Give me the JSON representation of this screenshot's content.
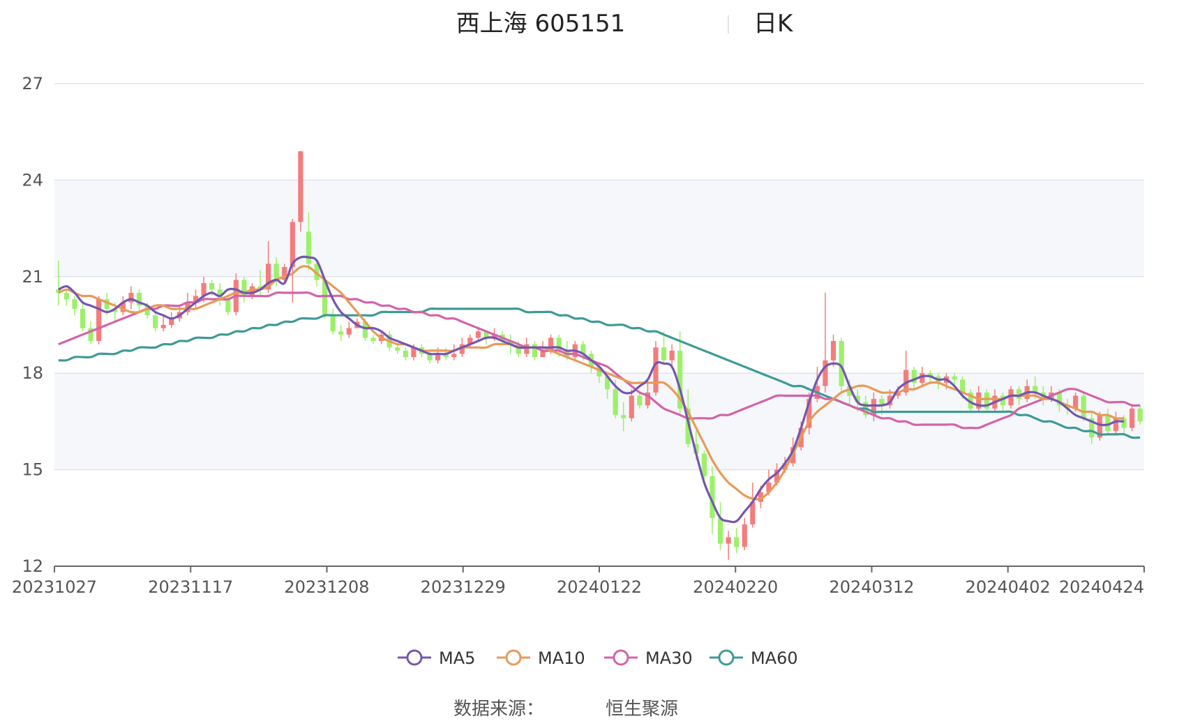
{
  "chart_data": {
    "type": "candlestick",
    "title": "西上海 605151",
    "period_label": "日K",
    "source_label": "数据来源：",
    "source_value": "恒生聚源",
    "y_ticks": [
      "12",
      "15",
      "18",
      "21",
      "24",
      "27"
    ],
    "ylim": [
      12,
      27
    ],
    "x_ticks": [
      "20231027",
      "20231117",
      "20231208",
      "20231229",
      "20240122",
      "20240220",
      "20240312",
      "20240402",
      "20240424"
    ],
    "legend": [
      "MA5",
      "MA10",
      "MA30",
      "MA60"
    ],
    "colors": {
      "up": "#f47c7c",
      "down": "#9cf06a",
      "MA5": "#7456b0",
      "MA10": "#e89a57",
      "MA30": "#d463a8",
      "MA60": "#3e9a97",
      "grid": "#dfe3ec",
      "band": "#f5f7fb",
      "axis": "#666666"
    },
    "candles": [
      [
        20.6,
        20.5,
        21.5,
        20.1
      ],
      [
        20.5,
        20.3,
        20.6,
        20.1
      ],
      [
        20.3,
        20.0,
        20.4,
        19.8
      ],
      [
        20.0,
        19.4,
        20.2,
        19.3
      ],
      [
        19.4,
        19.0,
        19.6,
        18.9
      ],
      [
        19.0,
        20.3,
        20.4,
        18.9
      ],
      [
        20.3,
        20.0,
        20.5,
        19.8
      ],
      [
        20.0,
        19.9,
        20.2,
        19.6
      ],
      [
        19.9,
        20.2,
        20.4,
        19.8
      ],
      [
        20.2,
        20.5,
        20.7,
        20.0
      ],
      [
        20.5,
        20.1,
        20.6,
        19.9
      ],
      [
        20.1,
        19.8,
        20.2,
        19.7
      ],
      [
        19.8,
        19.4,
        19.9,
        19.3
      ],
      [
        19.4,
        19.5,
        19.8,
        19.3
      ],
      [
        19.5,
        19.7,
        19.9,
        19.4
      ],
      [
        19.7,
        19.9,
        20.1,
        19.6
      ],
      [
        19.9,
        20.2,
        20.5,
        19.8
      ],
      [
        20.2,
        20.4,
        20.6,
        20.0
      ],
      [
        20.4,
        20.8,
        21.0,
        20.2
      ],
      [
        20.8,
        20.6,
        20.9,
        20.4
      ],
      [
        20.6,
        20.3,
        20.8,
        20.1
      ],
      [
        20.3,
        19.9,
        20.4,
        19.8
      ],
      [
        19.9,
        20.9,
        21.1,
        19.8
      ],
      [
        20.9,
        20.4,
        21.0,
        20.2
      ],
      [
        20.4,
        20.7,
        20.8,
        20.3
      ],
      [
        20.7,
        20.6,
        21.2,
        20.4
      ],
      [
        20.6,
        21.4,
        22.1,
        20.5
      ],
      [
        21.4,
        20.9,
        21.6,
        20.7
      ],
      [
        20.9,
        21.3,
        21.4,
        20.8
      ],
      [
        21.3,
        22.7,
        22.8,
        20.2
      ],
      [
        22.7,
        24.9,
        24.9,
        22.4
      ],
      [
        22.4,
        21.4,
        23.0,
        21.2
      ],
      [
        21.4,
        20.9,
        21.5,
        20.7
      ],
      [
        20.9,
        19.8,
        21.0,
        19.7
      ],
      [
        19.8,
        19.3,
        20.0,
        19.2
      ],
      [
        19.3,
        19.2,
        19.5,
        19.0
      ],
      [
        19.2,
        19.4,
        19.6,
        19.1
      ],
      [
        19.4,
        19.6,
        19.7,
        19.4
      ],
      [
        19.6,
        19.1,
        19.7,
        19.0
      ],
      [
        19.1,
        19.0,
        19.2,
        18.9
      ],
      [
        19.0,
        19.2,
        19.3,
        18.9
      ],
      [
        19.2,
        18.8,
        19.3,
        18.7
      ],
      [
        18.8,
        18.7,
        18.9,
        18.6
      ],
      [
        18.7,
        18.5,
        18.8,
        18.4
      ],
      [
        18.5,
        18.8,
        18.9,
        18.4
      ],
      [
        18.8,
        18.6,
        18.9,
        18.5
      ],
      [
        18.6,
        18.4,
        18.7,
        18.3
      ],
      [
        18.4,
        18.6,
        18.8,
        18.3
      ],
      [
        18.6,
        18.5,
        18.8,
        18.4
      ],
      [
        18.5,
        18.6,
        18.9,
        18.4
      ],
      [
        18.6,
        18.9,
        19.1,
        18.5
      ],
      [
        18.9,
        19.1,
        19.2,
        18.8
      ],
      [
        19.1,
        19.3,
        19.4,
        19.0
      ],
      [
        19.3,
        19.1,
        19.3,
        18.9
      ],
      [
        19.1,
        19.2,
        19.4,
        19.0
      ],
      [
        19.2,
        19.0,
        19.3,
        18.9
      ],
      [
        19.0,
        18.9,
        19.2,
        18.6
      ],
      [
        18.9,
        18.6,
        19.0,
        18.5
      ],
      [
        18.6,
        18.9,
        19.1,
        18.5
      ],
      [
        18.9,
        18.5,
        19.0,
        18.4
      ],
      [
        18.5,
        18.7,
        19.0,
        18.5
      ],
      [
        18.7,
        19.1,
        19.2,
        18.6
      ],
      [
        19.1,
        18.7,
        19.2,
        18.5
      ],
      [
        18.7,
        18.5,
        19.0,
        18.4
      ],
      [
        18.5,
        18.9,
        19.0,
        18.4
      ],
      [
        18.9,
        18.6,
        19.0,
        18.4
      ],
      [
        18.6,
        18.2,
        18.7,
        18.0
      ],
      [
        18.2,
        17.9,
        18.3,
        17.7
      ],
      [
        17.9,
        17.5,
        18.0,
        17.2
      ],
      [
        17.5,
        16.7,
        17.8,
        16.6
      ],
      [
        16.7,
        16.6,
        17.1,
        16.2
      ],
      [
        16.6,
        17.3,
        17.5,
        16.5
      ],
      [
        17.3,
        17.0,
        17.4,
        16.9
      ],
      [
        17.0,
        17.4,
        17.8,
        16.9
      ],
      [
        17.4,
        18.8,
        19.0,
        17.3
      ],
      [
        18.8,
        18.4,
        19.3,
        18.3
      ],
      [
        18.4,
        18.7,
        18.9,
        18.2
      ],
      [
        18.7,
        16.9,
        19.3,
        16.7
      ],
      [
        16.9,
        15.8,
        17.5,
        15.7
      ],
      [
        15.8,
        15.5,
        16.2,
        15.3
      ],
      [
        15.5,
        14.8,
        15.6,
        14.7
      ],
      [
        14.8,
        13.5,
        15.1,
        13.0
      ],
      [
        13.5,
        12.7,
        14.0,
        12.5
      ],
      [
        12.7,
        12.9,
        13.1,
        12.2
      ],
      [
        12.9,
        12.6,
        13.2,
        12.4
      ],
      [
        12.6,
        13.3,
        13.5,
        12.5
      ],
      [
        13.3,
        14.0,
        14.6,
        13.2
      ],
      [
        14.0,
        14.3,
        14.5,
        13.8
      ],
      [
        14.3,
        14.6,
        15.0,
        14.2
      ],
      [
        14.6,
        15.0,
        15.2,
        14.5
      ],
      [
        15.0,
        15.2,
        15.4,
        14.9
      ],
      [
        15.2,
        15.7,
        16.0,
        15.1
      ],
      [
        15.7,
        16.3,
        16.5,
        15.6
      ],
      [
        16.3,
        17.2,
        17.4,
        16.1
      ],
      [
        17.2,
        17.6,
        18.2,
        17.1
      ],
      [
        17.6,
        18.4,
        20.5,
        17.4
      ],
      [
        18.4,
        19.0,
        19.2,
        18.2
      ],
      [
        19.0,
        17.6,
        19.1,
        17.4
      ],
      [
        17.6,
        17.3,
        17.8,
        17.0
      ],
      [
        17.3,
        17.1,
        17.5,
        16.8
      ],
      [
        17.1,
        16.7,
        17.3,
        16.6
      ],
      [
        16.7,
        17.2,
        17.4,
        16.5
      ],
      [
        17.2,
        17.0,
        17.3,
        16.7
      ],
      [
        17.0,
        17.3,
        17.5,
        16.9
      ],
      [
        17.3,
        17.4,
        17.6,
        17.2
      ],
      [
        17.4,
        18.1,
        18.7,
        17.3
      ],
      [
        18.1,
        17.7,
        18.2,
        17.5
      ],
      [
        17.7,
        18.0,
        18.2,
        17.6
      ],
      [
        18.0,
        17.9,
        18.1,
        17.7
      ],
      [
        17.9,
        17.7,
        18.0,
        17.5
      ],
      [
        17.7,
        17.9,
        18.0,
        17.5
      ],
      [
        17.9,
        17.8,
        18.0,
        17.6
      ],
      [
        17.8,
        17.4,
        17.9,
        17.2
      ],
      [
        17.4,
        16.9,
        17.5,
        16.8
      ],
      [
        16.9,
        17.4,
        17.6,
        16.8
      ],
      [
        17.4,
        16.9,
        17.5,
        16.8
      ],
      [
        16.9,
        17.3,
        17.5,
        16.8
      ],
      [
        17.3,
        17.0,
        17.4,
        16.8
      ],
      [
        17.0,
        17.5,
        17.6,
        16.9
      ],
      [
        17.5,
        17.2,
        17.6,
        17.0
      ],
      [
        17.2,
        17.6,
        17.8,
        17.1
      ],
      [
        17.6,
        17.4,
        17.9,
        17.2
      ],
      [
        17.4,
        17.2,
        17.6,
        17.0
      ],
      [
        17.2,
        17.4,
        17.6,
        17.1
      ],
      [
        17.4,
        17.0,
        17.5,
        16.8
      ],
      [
        17.0,
        16.9,
        17.2,
        16.7
      ],
      [
        16.9,
        17.3,
        17.4,
        16.8
      ],
      [
        17.3,
        16.6,
        17.4,
        16.5
      ],
      [
        16.6,
        16.0,
        16.8,
        15.8
      ],
      [
        16.0,
        16.7,
        16.8,
        15.9
      ],
      [
        16.7,
        16.2,
        16.9,
        16.1
      ],
      [
        16.2,
        16.6,
        16.8,
        16.1
      ],
      [
        16.6,
        16.3,
        16.7,
        16.1
      ],
      [
        16.3,
        16.9,
        17.0,
        16.2
      ],
      [
        16.9,
        16.5,
        17.0,
        16.4
      ]
    ],
    "ma5": [
      20.6,
      20.7,
      20.5,
      20.2,
      20.1,
      20.0,
      19.9,
      20.0,
      20.2,
      20.3,
      20.2,
      20.1,
      19.9,
      19.8,
      19.7,
      19.8,
      20.0,
      20.2,
      20.4,
      20.5,
      20.4,
      20.6,
      20.6,
      20.5,
      20.5,
      20.6,
      20.8,
      20.9,
      20.8,
      21.4,
      21.6,
      21.6,
      21.5,
      20.9,
      20.3,
      19.9,
      19.7,
      19.5,
      19.4,
      19.4,
      19.3,
      19.1,
      19.0,
      18.9,
      18.8,
      18.7,
      18.6,
      18.6,
      18.6,
      18.7,
      18.8,
      18.9,
      19.0,
      19.1,
      19.1,
      19.0,
      18.9,
      18.8,
      18.8,
      18.8,
      18.8,
      18.8,
      18.8,
      18.7,
      18.7,
      18.6,
      18.4,
      18.2,
      17.9,
      17.6,
      17.4,
      17.4,
      17.6,
      17.8,
      18.3,
      18.3,
      18.2,
      17.5,
      16.5,
      15.5,
      14.6,
      14.0,
      13.5,
      13.4,
      13.4,
      13.7,
      14.0,
      14.4,
      14.7,
      14.9,
      15.2,
      15.6,
      16.3,
      17.1,
      17.8,
      18.2,
      18.3,
      18.2,
      17.6,
      17.1,
      17.0,
      17.0,
      17.0,
      17.1,
      17.5,
      17.7,
      17.8,
      17.9,
      17.9,
      17.8,
      17.8,
      17.6,
      17.3,
      17.1,
      17.0,
      17.0,
      17.1,
      17.2,
      17.3,
      17.3,
      17.4,
      17.4,
      17.3,
      17.2,
      17.1,
      16.9,
      16.7,
      16.6,
      16.5,
      16.4,
      16.4,
      16.5,
      16.5
    ],
    "ma10": [
      20.5,
      20.6,
      20.5,
      20.4,
      20.4,
      20.3,
      20.2,
      20.1,
      20.0,
      19.9,
      19.9,
      20.0,
      20.1,
      20.1,
      20.0,
      20.0,
      20.0,
      20.0,
      20.1,
      20.2,
      20.3,
      20.4,
      20.5,
      20.5,
      20.6,
      20.6,
      20.7,
      20.9,
      21.0,
      21.1,
      21.3,
      21.3,
      21.1,
      20.9,
      20.7,
      20.5,
      20.2,
      19.9,
      19.6,
      19.3,
      19.1,
      19.0,
      18.9,
      18.9,
      18.8,
      18.7,
      18.7,
      18.7,
      18.7,
      18.7,
      18.8,
      18.8,
      18.8,
      18.8,
      18.9,
      18.9,
      18.9,
      18.8,
      18.8,
      18.8,
      18.8,
      18.7,
      18.6,
      18.5,
      18.4,
      18.3,
      18.2,
      18.1,
      18.0,
      17.9,
      17.8,
      17.7,
      17.7,
      17.7,
      17.7,
      17.7,
      17.5,
      17.2,
      16.8,
      16.3,
      15.8,
      15.3,
      14.9,
      14.6,
      14.4,
      14.2,
      14.1,
      14.1,
      14.3,
      14.6,
      15.0,
      15.5,
      16.0,
      16.5,
      16.8,
      17.0,
      17.2,
      17.4,
      17.5,
      17.6,
      17.6,
      17.5,
      17.4,
      17.4,
      17.4,
      17.5,
      17.5,
      17.6,
      17.7,
      17.7,
      17.6,
      17.5,
      17.4,
      17.3,
      17.2,
      17.2,
      17.2,
      17.2,
      17.3,
      17.3,
      17.3,
      17.3,
      17.2,
      17.2,
      17.1,
      17.0,
      16.9,
      16.8,
      16.8,
      16.7,
      16.7,
      16.6,
      16.6
    ],
    "ma30": [
      18.9,
      19.0,
      19.1,
      19.2,
      19.3,
      19.4,
      19.5,
      19.6,
      19.7,
      19.8,
      19.9,
      20.0,
      20.0,
      20.1,
      20.1,
      20.1,
      20.2,
      20.2,
      20.3,
      20.3,
      20.3,
      20.3,
      20.4,
      20.4,
      20.4,
      20.4,
      20.4,
      20.5,
      20.5,
      20.5,
      20.5,
      20.5,
      20.4,
      20.4,
      20.4,
      20.4,
      20.3,
      20.3,
      20.2,
      20.2,
      20.1,
      20.1,
      20.0,
      20.0,
      19.9,
      19.9,
      19.8,
      19.8,
      19.7,
      19.7,
      19.6,
      19.5,
      19.4,
      19.3,
      19.2,
      19.1,
      19.0,
      18.9,
      18.8,
      18.8,
      18.7,
      18.7,
      18.7,
      18.6,
      18.6,
      18.5,
      18.4,
      18.3,
      18.2,
      18.0,
      17.8,
      17.6,
      17.4,
      17.3,
      17.1,
      16.9,
      16.8,
      16.7,
      16.6,
      16.6,
      16.6,
      16.6,
      16.7,
      16.7,
      16.8,
      16.9,
      17.0,
      17.1,
      17.2,
      17.3,
      17.3,
      17.3,
      17.3,
      17.3,
      17.3,
      17.2,
      17.2,
      17.1,
      17.0,
      16.9,
      16.8,
      16.7,
      16.6,
      16.6,
      16.5,
      16.5,
      16.4,
      16.4,
      16.4,
      16.4,
      16.4,
      16.4,
      16.3,
      16.3,
      16.3,
      16.4,
      16.5,
      16.6,
      16.7,
      16.9,
      17.0,
      17.1,
      17.2,
      17.3,
      17.4,
      17.5,
      17.5,
      17.4,
      17.3,
      17.2,
      17.1,
      17.1,
      17.1,
      17.0,
      17.0
    ],
    "ma60": [
      18.4,
      18.4,
      18.5,
      18.5,
      18.5,
      18.6,
      18.6,
      18.6,
      18.7,
      18.7,
      18.8,
      18.8,
      18.8,
      18.9,
      18.9,
      19.0,
      19.0,
      19.1,
      19.1,
      19.1,
      19.2,
      19.2,
      19.3,
      19.3,
      19.4,
      19.4,
      19.5,
      19.5,
      19.6,
      19.6,
      19.7,
      19.7,
      19.7,
      19.8,
      19.8,
      19.8,
      19.8,
      19.8,
      19.8,
      19.8,
      19.9,
      19.9,
      19.9,
      19.9,
      19.9,
      19.9,
      20.0,
      20.0,
      20.0,
      20.0,
      20.0,
      20.0,
      20.0,
      20.0,
      20.0,
      20.0,
      20.0,
      20.0,
      19.9,
      19.9,
      19.9,
      19.9,
      19.8,
      19.8,
      19.7,
      19.7,
      19.6,
      19.6,
      19.5,
      19.5,
      19.5,
      19.4,
      19.4,
      19.3,
      19.3,
      19.2,
      19.1,
      19.0,
      18.9,
      18.8,
      18.7,
      18.6,
      18.5,
      18.4,
      18.3,
      18.2,
      18.1,
      18.0,
      17.9,
      17.8,
      17.7,
      17.6,
      17.6,
      17.5,
      17.4,
      17.3,
      17.2,
      17.1,
      17.0,
      16.9,
      16.9,
      16.8,
      16.8,
      16.8,
      16.8,
      16.8,
      16.8,
      16.8,
      16.8,
      16.8,
      16.8,
      16.8,
      16.8,
      16.8,
      16.8,
      16.8,
      16.8,
      16.8,
      16.8,
      16.7,
      16.7,
      16.6,
      16.5,
      16.5,
      16.4,
      16.3,
      16.3,
      16.2,
      16.2,
      16.1,
      16.1,
      16.1,
      16.1,
      16.0,
      16.0
    ]
  }
}
